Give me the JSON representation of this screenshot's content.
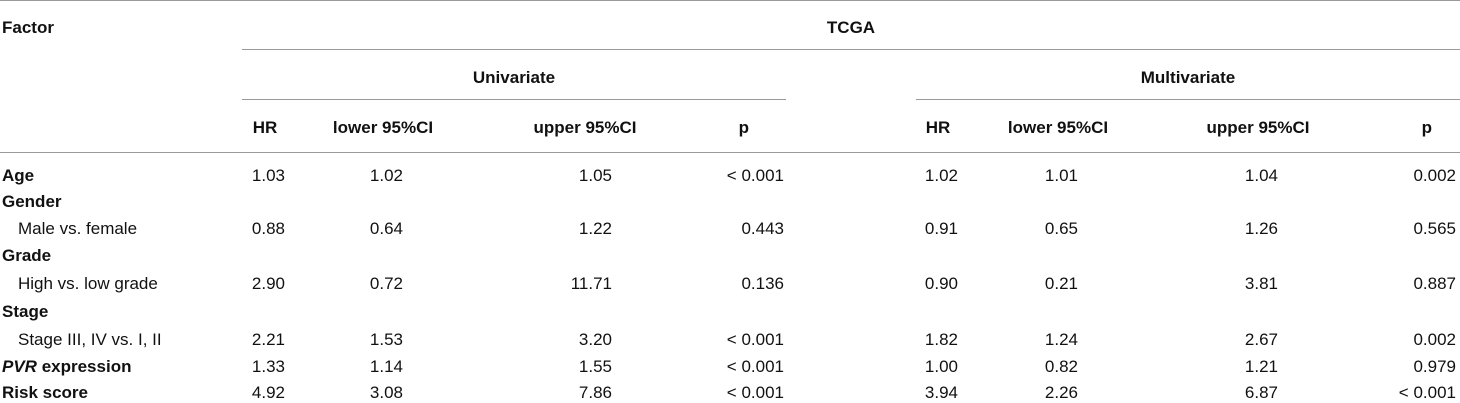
{
  "header": {
    "factor": "Factor",
    "group": "TCGA",
    "univariate": "Univariate",
    "multivariate": "Multivariate",
    "columns": [
      "HR",
      "lower 95%CI",
      "upper 95%CI",
      "p",
      "HR",
      "lower 95%CI",
      "upper 95%CI",
      "p"
    ]
  },
  "rows": [
    {
      "label": "Age",
      "bold": true,
      "values": [
        "1.03",
        "1.02",
        "1.05",
        "< 0.001",
        "1.02",
        "1.01",
        "1.04",
        "0.002"
      ]
    },
    {
      "label": "Gender",
      "bold": true,
      "values": []
    },
    {
      "label": "Male vs. female",
      "bold": false,
      "values": [
        "0.88",
        "0.64",
        "1.22",
        "0.443",
        "0.91",
        "0.65",
        "1.26",
        "0.565"
      ]
    },
    {
      "label": "Grade",
      "bold": true,
      "values": []
    },
    {
      "label": "High vs. low grade",
      "bold": false,
      "values": [
        "2.90",
        "0.72",
        "11.71",
        "0.136",
        "0.90",
        "0.21",
        "3.81",
        "0.887"
      ]
    },
    {
      "label": "Stage",
      "bold": true,
      "values": []
    },
    {
      "label": "Stage III, IV vs. I, II",
      "bold": false,
      "values": [
        "2.21",
        "1.53",
        "3.20",
        "< 0.001",
        "1.82",
        "1.24",
        "2.67",
        "0.002"
      ]
    },
    {
      "label_italic": "PVR",
      "label_rest": " expression",
      "bold": true,
      "values": [
        "1.33",
        "1.14",
        "1.55",
        "< 0.001",
        "1.00",
        "0.82",
        "1.21",
        "0.979"
      ]
    },
    {
      "label": "Risk score",
      "bold": true,
      "values": [
        "4.92",
        "3.08",
        "7.86",
        "< 0.001",
        "3.94",
        "2.26",
        "6.87",
        "< 0.001"
      ]
    }
  ]
}
